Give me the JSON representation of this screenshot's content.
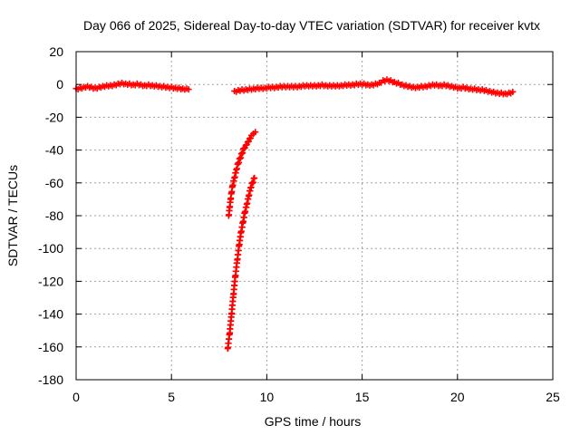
{
  "chart_data": {
    "type": "scatter",
    "title": "Day 066 of 2025, Sidereal Day-to-day VTEC variation (SDTVAR) for receiver kvtx",
    "xlabel": "GPS time / hours",
    "ylabel": "SDTVAR / TECUs",
    "xlim": [
      0,
      25
    ],
    "ylim": [
      -180,
      20
    ],
    "xticks": [
      "0",
      "5",
      "10",
      "15",
      "20",
      "25"
    ],
    "yticks": [
      "20",
      "0",
      "-20",
      "-40",
      "-60",
      "-80",
      "-100",
      "-120",
      "-140",
      "-160",
      "-180"
    ],
    "grid": true,
    "legend": "none",
    "marker": "+",
    "color": "#ff0000",
    "series": [
      {
        "segments": [
          {
            "x": [
              0.0,
              0.2,
              0.4,
              0.6,
              0.8,
              1.0,
              1.2,
              1.4,
              1.6,
              1.8,
              2.0,
              2.2,
              2.4,
              2.6,
              2.8,
              3.0,
              3.2,
              3.4,
              3.6,
              3.8,
              4.0,
              4.2,
              4.4,
              4.6,
              4.8,
              5.0,
              5.2,
              5.4,
              5.6,
              5.8,
              5.9
            ],
            "y": [
              -2.5,
              -2.0,
              -1.5,
              -1.0,
              -1.5,
              -2.0,
              -1.5,
              -1.0,
              -0.5,
              -0.5,
              0.0,
              0.5,
              1.0,
              0.5,
              0.5,
              0.0,
              0.5,
              0.0,
              -0.5,
              0.0,
              -0.5,
              -0.5,
              -1.0,
              -1.0,
              -1.5,
              -1.5,
              -2.0,
              -2.0,
              -2.5,
              -2.5,
              -3.0
            ]
          },
          {
            "x": [
              8.3,
              8.5,
              8.7,
              8.9,
              9.1,
              9.3,
              9.5,
              9.7,
              9.9,
              10.1,
              10.3,
              10.5,
              10.7,
              10.9,
              11.1,
              11.3,
              11.5,
              11.7,
              11.9,
              12.1,
              12.3,
              12.5,
              12.7,
              12.9,
              13.1,
              13.3,
              13.5,
              13.7,
              13.9,
              14.1,
              14.3,
              14.5,
              14.7,
              14.9,
              15.1,
              15.3,
              15.5,
              15.7,
              15.9,
              16.1,
              16.3,
              16.5,
              16.7,
              16.9,
              17.1,
              17.3,
              17.5,
              17.7,
              17.9,
              18.1,
              18.3,
              18.5,
              18.7,
              18.9,
              19.1,
              19.3,
              19.5,
              19.7,
              19.9,
              20.1,
              20.3,
              20.5,
              20.7,
              20.9,
              21.1,
              21.3,
              21.5,
              21.7,
              21.9,
              22.1,
              22.3,
              22.5,
              22.7,
              22.9
            ],
            "y": [
              -4.0,
              -3.5,
              -3.0,
              -3.0,
              -2.5,
              -2.5,
              -2.0,
              -2.0,
              -2.0,
              -1.5,
              -1.5,
              -1.5,
              -1.0,
              -1.0,
              -1.0,
              -1.0,
              -1.0,
              -1.0,
              -0.5,
              -0.5,
              -0.5,
              -0.5,
              -0.5,
              0.0,
              -0.5,
              -0.5,
              -0.5,
              -0.5,
              -0.5,
              0.0,
              0.0,
              0.0,
              0.5,
              0.5,
              0.5,
              0.0,
              0.0,
              0.5,
              1.0,
              2.5,
              3.0,
              2.5,
              1.5,
              1.0,
              0.0,
              -0.5,
              -1.0,
              -1.5,
              -1.5,
              -1.0,
              -1.0,
              -0.5,
              0.0,
              0.0,
              -0.5,
              0.0,
              -0.5,
              -1.0,
              -1.5,
              -2.0,
              -1.5,
              -2.0,
              -2.5,
              -2.5,
              -3.0,
              -3.0,
              -3.5,
              -4.0,
              -4.5,
              -5.0,
              -5.0,
              -5.5,
              -5.0,
              -4.5
            ]
          },
          {
            "x": [
              8.0,
              8.05,
              8.1,
              8.15,
              8.2,
              8.3,
              8.4,
              8.5,
              8.6,
              8.7,
              8.8,
              8.9,
              9.0,
              9.1,
              9.2,
              9.3,
              9.4
            ],
            "y": [
              -80,
              -75,
              -70,
              -66,
              -62,
              -57,
              -52,
              -48,
              -45,
              -42,
              -39,
              -37,
              -35,
              -33,
              -31,
              -30,
              -29
            ]
          },
          {
            "x": [
              7.95,
              8.05,
              8.15,
              8.25,
              8.35,
              8.45,
              8.55,
              8.65,
              8.75,
              8.85,
              8.95,
              9.05,
              9.15,
              9.25,
              9.35
            ],
            "y": [
              -161,
              -152,
              -140,
              -128,
              -117,
              -107,
              -98,
              -90,
              -84,
              -78,
              -73,
              -68,
              -63,
              -60,
              -57
            ]
          }
        ]
      }
    ]
  }
}
